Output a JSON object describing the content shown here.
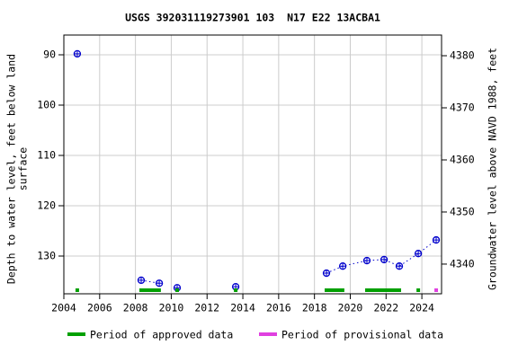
{
  "chart_data": {
    "type": "scatter",
    "title": "USGS 392031119273901 103  N17 E22 13ACBA1",
    "ylabel": [
      "Depth to water level, feet below land",
      "surface"
    ],
    "y2label": "Groundwater level above NAVD 1988, feet",
    "x": [
      2004.75,
      null,
      2008.32,
      2009.33,
      null,
      2010.33,
      null,
      2013.6,
      null,
      2018.67,
      2019.58,
      2020.93,
      2021.89,
      2022.74,
      2023.8,
      2024.8
    ],
    "series": [
      {
        "name": "Depth to water level",
        "color": "#0000cc",
        "values": [
          89.8,
          null,
          134.8,
          135.4,
          null,
          136.3,
          null,
          136.1,
          null,
          133.4,
          132.0,
          130.9,
          130.7,
          132.0,
          129.5,
          126.8
        ]
      }
    ],
    "xlim": [
      2004,
      2025.1
    ],
    "xticks": [
      2004,
      2006,
      2008,
      2010,
      2012,
      2014,
      2016,
      2018,
      2020,
      2022,
      2024
    ],
    "ylim": [
      86.07,
      137.5
    ],
    "yticks": [
      90,
      100,
      110,
      120,
      130
    ],
    "y_inverted": true,
    "y2lim": [
      4334.3,
      4383.97
    ],
    "y2ticks": [
      4340,
      4350,
      4360,
      4370,
      4380
    ],
    "grid": true,
    "periods": [
      {
        "name": "Period of approved data",
        "color": "#00a000",
        "ranges": [
          [
            2004.65,
            2004.85
          ],
          [
            2008.22,
            2009.42
          ],
          [
            2010.23,
            2010.43
          ],
          [
            2013.5,
            2013.7
          ],
          [
            2018.57,
            2019.67
          ],
          [
            2020.83,
            2022.84
          ],
          [
            2023.7,
            2023.9
          ]
        ]
      },
      {
        "name": "Period of provisional data",
        "color": "#e040e0",
        "ranges": [
          [
            2024.7,
            2024.9
          ]
        ]
      }
    ]
  }
}
